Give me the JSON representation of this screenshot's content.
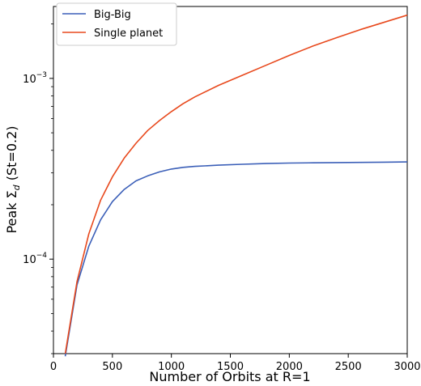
{
  "chart_data": {
    "type": "line",
    "xlabel": "Number of Orbits at R=1",
    "ylabel_prefix": "Peak Σ",
    "ylabel_sub": "d",
    "ylabel_suffix": " (St=0.2)",
    "xlim": [
      0,
      3000
    ],
    "ylim": [
      3e-05,
      0.0025
    ],
    "yscale": "log",
    "grid": false,
    "legend_position": "top-left",
    "x_ticks": [
      0,
      500,
      1000,
      1500,
      2000,
      2500,
      3000
    ],
    "x_tick_labels": [
      "0",
      "500",
      "1000",
      "1500",
      "2000",
      "2500",
      "3000"
    ],
    "y_ticks": [
      {
        "value": 0.0001,
        "base": "10",
        "exp": "−4"
      },
      {
        "value": 0.001,
        "base": "10",
        "exp": "−3"
      }
    ],
    "series": [
      {
        "name": "Big-Big",
        "color": "#3b5fb8",
        "x": [
          100,
          200,
          300,
          400,
          500,
          600,
          700,
          800,
          900,
          1000,
          1100,
          1200,
          1400,
          1600,
          1800,
          2000,
          2200,
          2400,
          2600,
          2800,
          3000
        ],
        "y": [
          2.9e-05,
          7.2e-05,
          0.000118,
          0.000165,
          0.000208,
          0.000243,
          0.000271,
          0.000289,
          0.000304,
          0.000315,
          0.000322,
          0.000326,
          0.000331,
          0.000335,
          0.000338,
          0.00034,
          0.000341,
          0.000342,
          0.000343,
          0.000344,
          0.000345
        ]
      },
      {
        "name": "Single planet",
        "color": "#e8491d",
        "x": [
          100,
          200,
          300,
          400,
          500,
          600,
          700,
          800,
          900,
          1000,
          1100,
          1200,
          1400,
          1600,
          1800,
          2000,
          2200,
          2400,
          2600,
          2800,
          3000
        ],
        "y": [
          3e-05,
          7.5e-05,
          0.000138,
          0.000212,
          0.000285,
          0.000362,
          0.000438,
          0.000515,
          0.000585,
          0.000655,
          0.000725,
          0.00079,
          0.000915,
          0.00104,
          0.00118,
          0.00134,
          0.00151,
          0.00168,
          0.00186,
          0.00204,
          0.00224
        ]
      }
    ]
  }
}
